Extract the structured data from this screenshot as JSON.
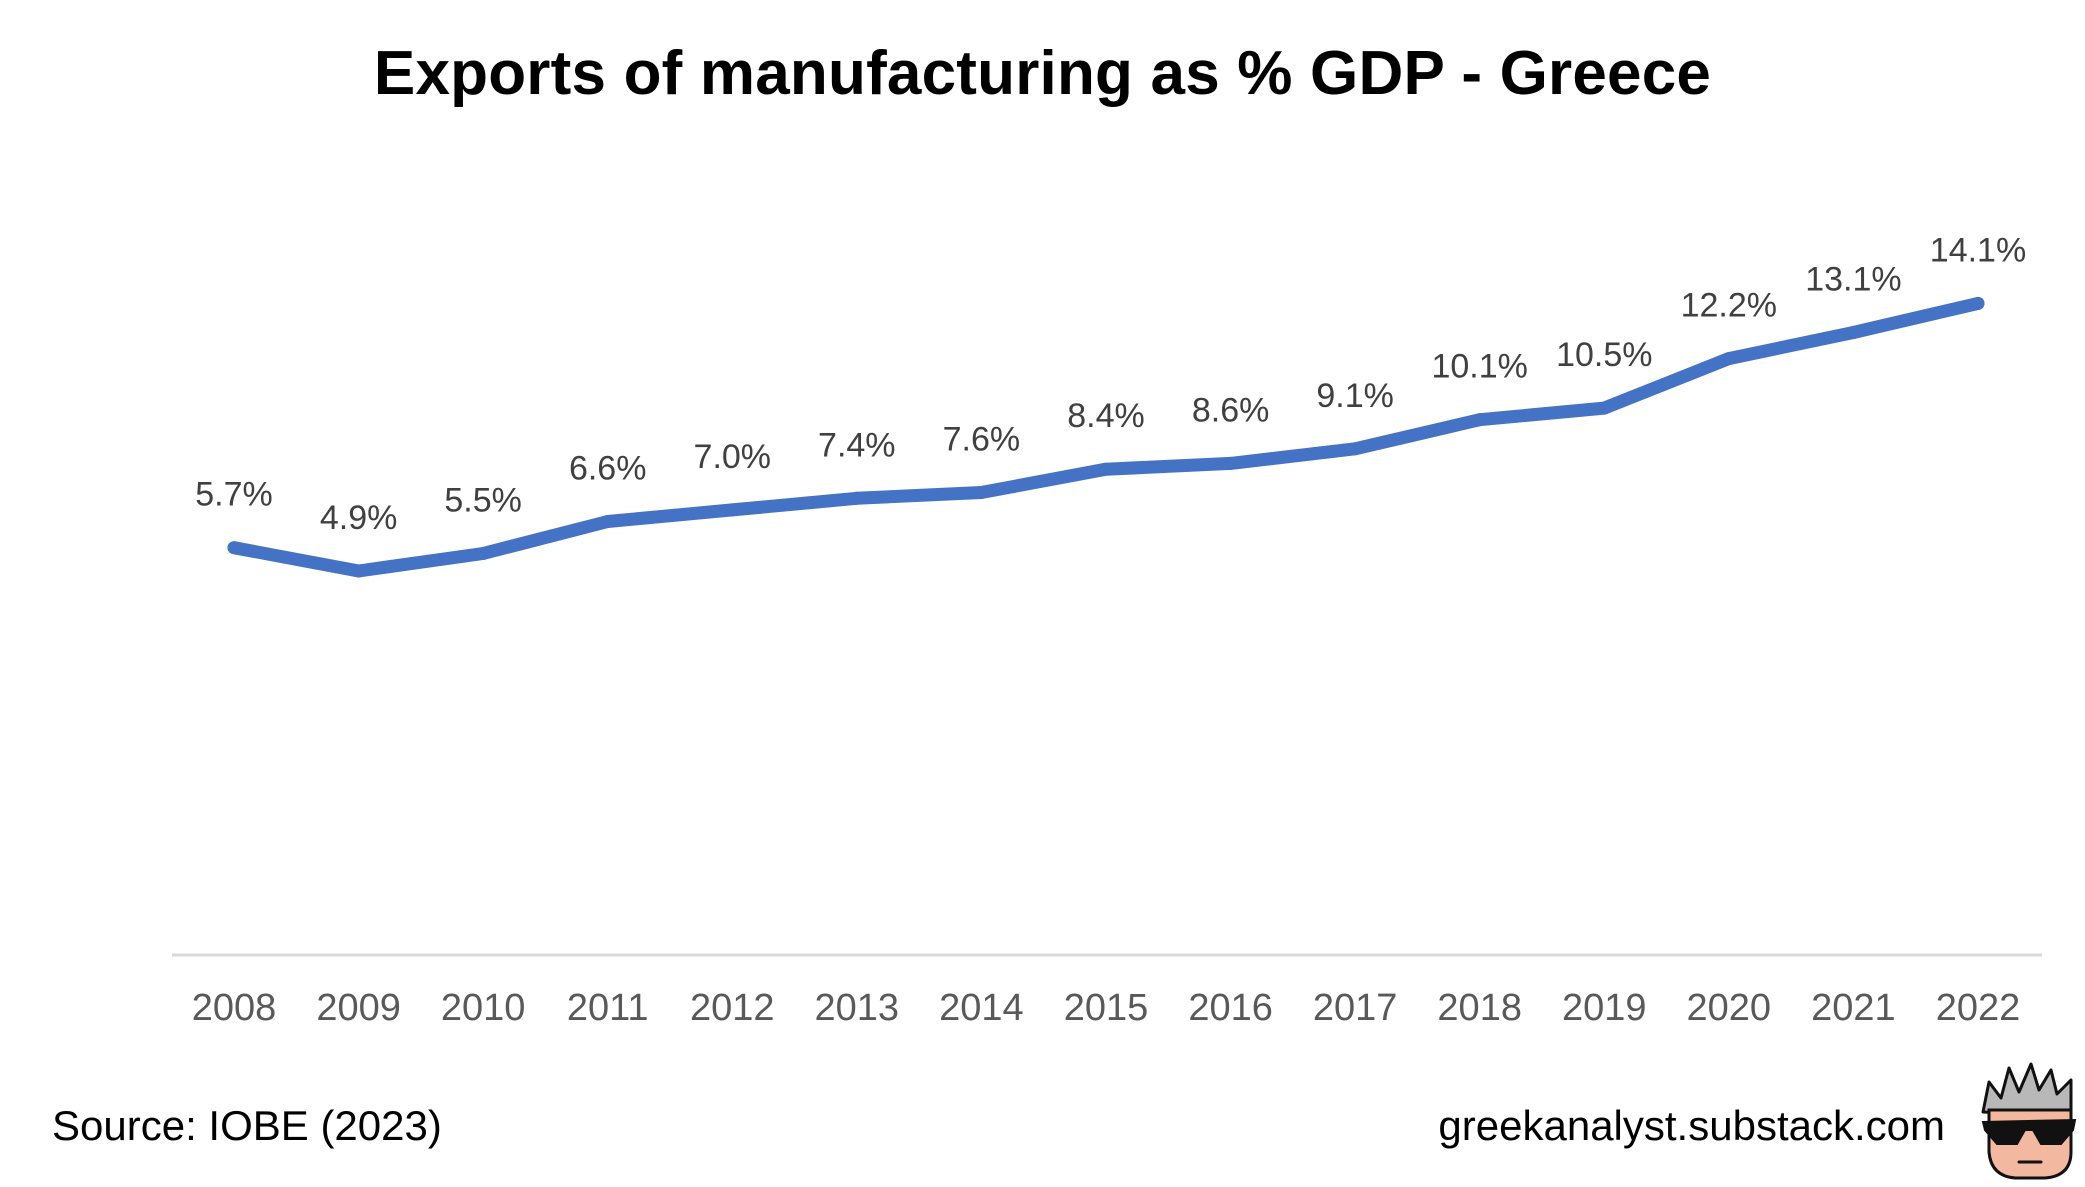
{
  "chart_data": {
    "type": "line",
    "title": "Exports of manufacturing as % GDP - Greece",
    "xlabel": "",
    "ylabel": "",
    "categories": [
      "2008",
      "2009",
      "2010",
      "2011",
      "2012",
      "2013",
      "2014",
      "2015",
      "2016",
      "2017",
      "2018",
      "2019",
      "2020",
      "2021",
      "2022"
    ],
    "series": [
      {
        "values": [
          5.7,
          4.9,
          5.5,
          6.6,
          7.0,
          7.4,
          7.6,
          8.4,
          8.6,
          9.1,
          10.1,
          10.5,
          12.2,
          13.1,
          14.1
        ],
        "labels": [
          "5.7%",
          "4.9%",
          "5.5%",
          "6.6%",
          "7.0%",
          "7.4%",
          "7.6%",
          "8.4%",
          "8.6%",
          "9.1%",
          "10.1%",
          "10.5%",
          "12.2%",
          "13.1%",
          "14.1%"
        ],
        "color": "#4472C4"
      }
    ],
    "ylim": [
      -8.3,
      19.2
    ],
    "grid": false,
    "legend": "none"
  },
  "footer": {
    "source": "Source: IOBE (2023)",
    "site": "greekanalyst.substack.com"
  },
  "colors": {
    "line": "#4472C4",
    "axis": "#d9d9d9",
    "tick_text": "#595959",
    "data_label_text": "#404040"
  },
  "icons": {
    "mascot": "cartoon-face-sunglasses-icon"
  }
}
